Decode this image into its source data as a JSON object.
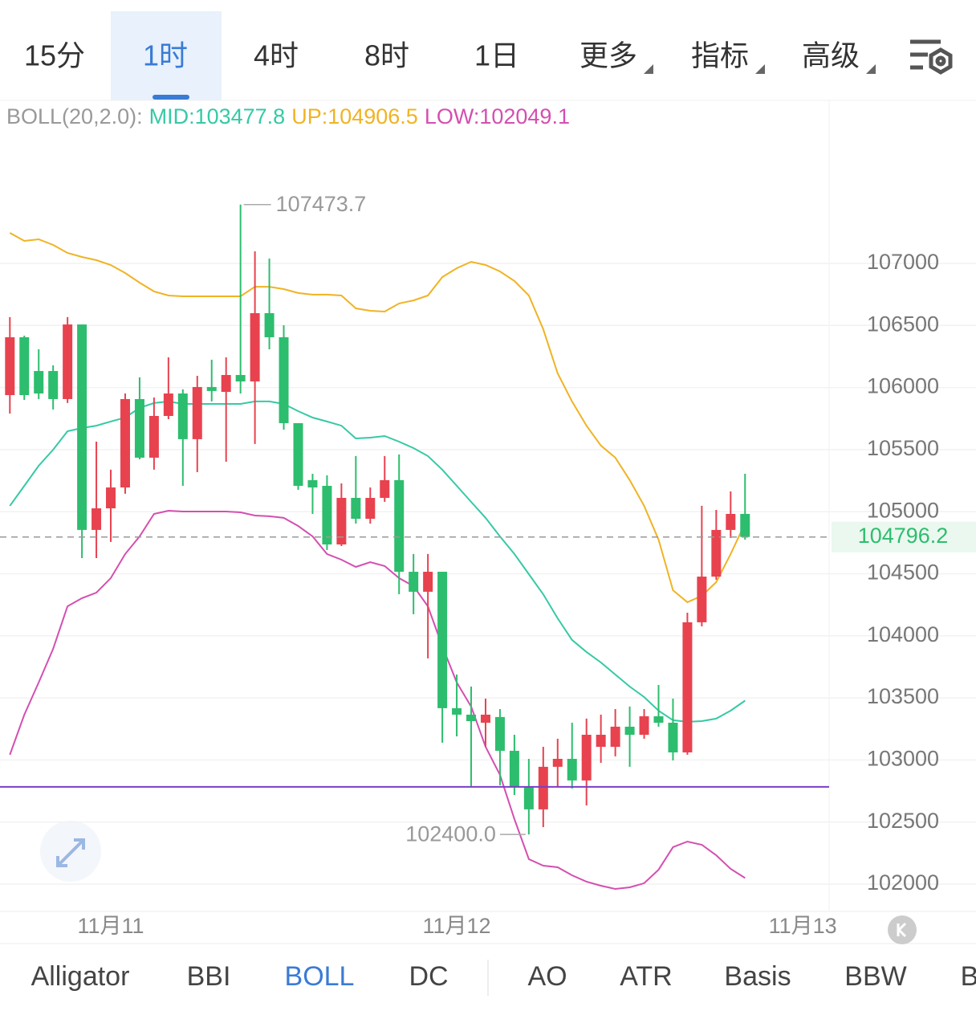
{
  "tabs": {
    "items": [
      "15分",
      "1时",
      "4时",
      "8时",
      "1日",
      "更多",
      "指标",
      "高级"
    ],
    "active": 1,
    "menus": [
      5,
      6,
      7
    ]
  },
  "indicator_tabs": {
    "items": [
      "Alligator",
      "BBI",
      "BOLL",
      "DC",
      "AO",
      "ATR",
      "Basis",
      "BBW",
      "B"
    ],
    "active": 2
  },
  "chart_data": {
    "type": "candlestick",
    "legend": {
      "title": "BOLL(20,2.0):",
      "items": [
        "MID:103477.8",
        "UP:104906.5",
        "LOW:102049.1"
      ]
    },
    "categories": [
      null,
      null,
      null,
      null,
      null,
      null,
      null,
      "11月11",
      null,
      null,
      null,
      null,
      null,
      null,
      null,
      null,
      null,
      null,
      null,
      null,
      null,
      null,
      null,
      null,
      null,
      null,
      null,
      null,
      null,
      null,
      null,
      "11月12",
      null,
      null,
      null,
      null,
      null,
      null,
      null,
      null,
      null,
      null,
      null,
      null,
      null,
      null,
      null,
      null,
      null,
      null,
      null,
      null,
      null,
      null,
      null,
      "11月13"
    ],
    "open": [
      105939,
      106405,
      106133,
      106133,
      105907,
      106508,
      104853,
      105027,
      105195,
      105907,
      105435,
      105771,
      105952,
      105584,
      106004,
      105965,
      106101,
      106049,
      106599,
      106405,
      105713,
      105254,
      105208,
      104736,
      105111,
      104943,
      105111,
      105254,
      104516,
      104355,
      104516,
      103417,
      103365,
      103300,
      103346,
      103074,
      102783,
      102602,
      102945,
      103009,
      102835,
      103106,
      103106,
      103268,
      103203,
      103352,
      103300,
      103061,
      104109,
      104477,
      104853,
      104982,
      null,
      null,
      null,
      null
    ],
    "high": [
      106567,
      106418,
      106308,
      106179,
      106567,
      106508,
      105564,
      105338,
      105952,
      106082,
      105920,
      106243,
      105985,
      106094,
      106224,
      106243,
      107473.7,
      107097,
      107039,
      106502,
      105713,
      105305,
      105292,
      105228,
      105448,
      105195,
      105448,
      105461,
      104659,
      104659,
      104516,
      103688,
      103591,
      103494,
      103410,
      103203,
      103009,
      103106,
      103171,
      103300,
      103333,
      103365,
      103410,
      103430,
      103410,
      103604,
      103494,
      104186,
      105047,
      105014,
      105163,
      105305,
      null,
      null,
      null,
      null
    ],
    "low": [
      105790,
      105900,
      105907,
      105823,
      105875,
      104626,
      104626,
      104756,
      105144,
      105422,
      105338,
      105745,
      105208,
      105318,
      105888,
      105402,
      105952,
      105545,
      106308,
      105661,
      105176,
      104982,
      104691,
      104723,
      104904,
      104904,
      105079,
      104335,
      104174,
      103818,
      103139,
      103190,
      102783,
      103106,
      102796,
      102718,
      102400,
      102459,
      102783,
      102770,
      102634,
      102977,
      103029,
      102945,
      103171,
      103268,
      102996,
      103042,
      104076,
      104452,
      104788,
      104775,
      null,
      null,
      null,
      null
    ],
    "close": [
      106405,
      105939,
      105952,
      105907,
      106508,
      104853,
      105027,
      105195,
      105907,
      105435,
      105771,
      105952,
      105584,
      106004,
      105972,
      106101,
      106049,
      106599,
      106405,
      105713,
      105208,
      105195,
      104736,
      105111,
      104943,
      105111,
      105254,
      104516,
      104355,
      104516,
      103417,
      103365,
      103313,
      103365,
      103074,
      102783,
      102602,
      102945,
      103009,
      102835,
      103203,
      103203,
      103268,
      103203,
      103352,
      103300,
      103061,
      104109,
      104477,
      104853,
      104982,
      104796.2,
      null,
      null,
      null,
      null
    ],
    "up_color": "#e8424f",
    "down_color": "#2dbd6e",
    "bands": [
      {
        "name": "MID",
        "color": "#36c9a5",
        "values": [
          105047,
          105208,
          105370,
          105499,
          105648,
          105674,
          105693,
          105726,
          105758,
          105836,
          105875,
          105888,
          105868,
          105868,
          105868,
          105868,
          105868,
          105888,
          105888,
          105868,
          105810,
          105758,
          105726,
          105693,
          105590,
          105596,
          105609,
          105564,
          105512,
          105448,
          105338,
          105208,
          105079,
          104950,
          104801,
          104659,
          104497,
          104335,
          104141,
          103967,
          103870,
          103785,
          103688,
          103591,
          103507,
          103397,
          103320,
          103307,
          103313,
          103333,
          103397,
          103477.8,
          null,
          null,
          null,
          null
        ]
      },
      {
        "name": "UP",
        "color": "#f0b323",
        "values": [
          107246,
          107181,
          107194,
          107149,
          107084,
          107052,
          107026,
          106987,
          106922,
          106845,
          106774,
          106741,
          106735,
          106735,
          106735,
          106735,
          106735,
          106812,
          106812,
          106793,
          106761,
          106748,
          106748,
          106741,
          106638,
          106618,
          106612,
          106677,
          106702,
          106741,
          106890,
          106961,
          107013,
          106987,
          106935,
          106858,
          106741,
          106470,
          106114,
          105888,
          105693,
          105532,
          105435,
          105254,
          105047,
          104775,
          104367,
          104271,
          104322,
          104432,
          104659,
          104906.5,
          null,
          null,
          null,
          null
        ]
      },
      {
        "name": "LOW",
        "color": "#d44fb0",
        "values": [
          103042,
          103365,
          103624,
          103895,
          104238,
          104303,
          104348,
          104465,
          104659,
          104801,
          104982,
          105008,
          105001,
          105001,
          105001,
          105001,
          104995,
          104969,
          104963,
          104950,
          104885,
          104801,
          104659,
          104613,
          104555,
          104594,
          104562,
          104465,
          104400,
          104238,
          103915,
          103624,
          103430,
          103106,
          102880,
          102524,
          102201,
          102149,
          102136,
          102071,
          102020,
          101987,
          101961,
          101974,
          102007,
          102116,
          102298,
          102343,
          102317,
          102233,
          102123,
          102049.1,
          null,
          null,
          null,
          null
        ]
      }
    ],
    "last_price": 104796.2,
    "hline": {
      "value": 102783,
      "color": "#7a3ec8"
    },
    "high_label": {
      "value": 107473.7,
      "label": "107473.7"
    },
    "low_label": {
      "value": 102400,
      "label": "102400.0"
    },
    "ylim": [
      101780,
      108313
    ],
    "yticks": [
      102000,
      102500,
      103000,
      103500,
      104000,
      104500,
      105000,
      105500,
      106000,
      106500,
      107000
    ],
    "grid": true
  }
}
